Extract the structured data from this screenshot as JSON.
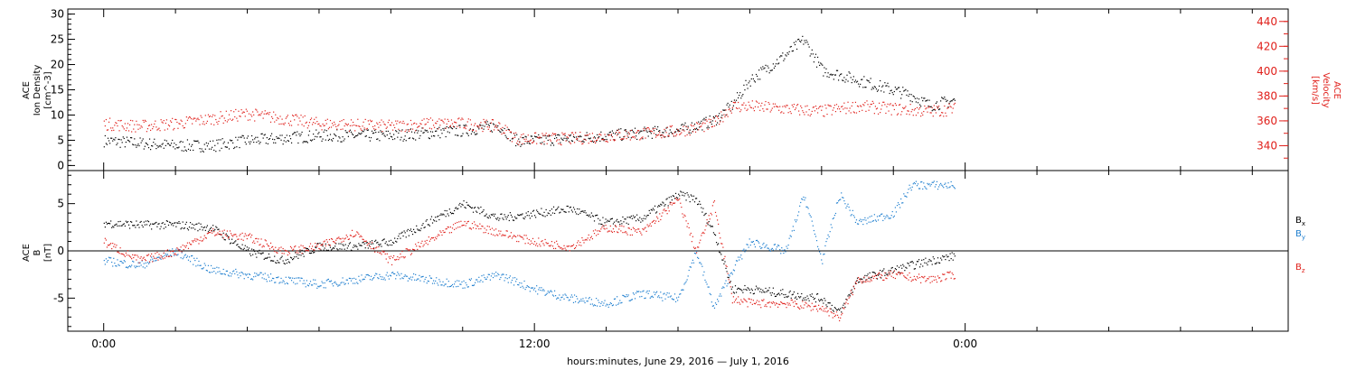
{
  "chart_data": [
    {
      "type": "scatter",
      "panel": "top",
      "ylabel_left": {
        "line1": "ACE",
        "line2": "Ion Density",
        "line3": "[cm^-3]"
      },
      "ylabel_right": {
        "line1": "ACE",
        "line2": "Velocity",
        "line3": "[km/s]"
      },
      "ylim_left": [
        -1,
        31
      ],
      "ylim_right": [
        320,
        450
      ],
      "yticks_left": [
        0,
        5,
        10,
        15,
        20,
        25,
        30
      ],
      "yticks_right": [
        340,
        360,
        380,
        400,
        420,
        440
      ],
      "xlim": [
        -1,
        33
      ],
      "series": [
        {
          "name": "",
          "axis": "left",
          "color": "#000000",
          "x": [
            0,
            1,
            2,
            3,
            4,
            5,
            6,
            7,
            8,
            9,
            10,
            11,
            11.5,
            12,
            13,
            14,
            15,
            16,
            17,
            17.5,
            18,
            19,
            19.5,
            20,
            21,
            22,
            22.5,
            23,
            23.7
          ],
          "y": [
            5,
            4.5,
            4,
            4,
            5,
            5.5,
            6,
            6,
            6,
            6.5,
            7,
            8,
            5,
            5,
            5.5,
            6,
            6.5,
            7,
            9,
            12,
            17,
            22,
            25,
            19,
            17,
            15,
            14,
            12,
            13
          ]
        },
        {
          "name": "",
          "axis": "right",
          "color": "#e0201b",
          "x": [
            0,
            1,
            2,
            3,
            4,
            5,
            6,
            7,
            8,
            9,
            10,
            11,
            11.5,
            12,
            13,
            14,
            15,
            16,
            17,
            17.5,
            18,
            19,
            20,
            21,
            22,
            23,
            23.7
          ],
          "y": [
            358,
            356,
            358,
            362,
            366,
            362,
            358,
            357,
            356,
            358,
            358,
            356,
            346,
            346,
            346,
            348,
            350,
            352,
            358,
            372,
            372,
            370,
            368,
            372,
            370,
            368,
            370
          ]
        }
      ]
    },
    {
      "type": "scatter",
      "panel": "bottom",
      "ylabel": {
        "line1": "ACE",
        "line2": "B",
        "line3": "[nT]"
      },
      "ylim": [
        -8.5,
        8.5
      ],
      "yticks": [
        -5,
        0,
        5
      ],
      "xlim": [
        -1,
        33
      ],
      "series": [
        {
          "name": "Bx",
          "color": "#000000",
          "x": [
            0,
            1,
            2,
            3,
            4,
            5,
            6,
            7,
            8,
            9,
            10,
            11,
            12,
            13,
            14,
            15,
            16,
            16.5,
            17,
            17.5,
            18,
            19,
            20,
            20.5,
            21,
            22,
            23,
            23.7
          ],
          "y": [
            3,
            2.8,
            2.8,
            2.5,
            0,
            -1,
            0.5,
            0.5,
            1,
            3,
            5,
            3.5,
            4,
            4.5,
            3,
            3.5,
            6,
            5.5,
            2,
            -4,
            -4,
            -4.5,
            -5,
            -6.5,
            -3,
            -2,
            -1,
            -0.5
          ]
        },
        {
          "name": "By",
          "color": "#1f7fcf",
          "x": [
            0,
            1,
            2,
            3,
            4,
            5,
            6,
            7,
            8,
            9,
            10,
            11,
            12,
            13,
            14,
            15,
            16,
            16.5,
            17,
            17.5,
            18,
            19,
            19.5,
            20,
            20.5,
            21,
            22,
            22.5,
            23,
            23.7
          ],
          "y": [
            -1,
            -1.5,
            0,
            -2,
            -2.5,
            -3,
            -3.5,
            -3,
            -2.5,
            -3,
            -3.5,
            -2.5,
            -4,
            -5,
            -5.5,
            -4.5,
            -5,
            0,
            -6,
            -2,
            1,
            0,
            6,
            -1,
            6,
            3,
            4,
            7,
            7,
            7
          ]
        },
        {
          "name": "Bz",
          "color": "#e0201b",
          "x": [
            0,
            1,
            2,
            3,
            4,
            5,
            6,
            7,
            8,
            9,
            10,
            11,
            12,
            13,
            14,
            15,
            16,
            16.5,
            17,
            17.5,
            18,
            19,
            20,
            20.5,
            21,
            22,
            23,
            23.7
          ],
          "y": [
            1,
            -1,
            0,
            2,
            1.5,
            0,
            0.5,
            2,
            -1,
            1,
            3,
            2,
            1,
            0.5,
            2.5,
            2,
            5.5,
            0,
            5,
            -5,
            -5.5,
            -5.5,
            -6,
            -7,
            -3,
            -2.5,
            -3,
            -2.5
          ]
        }
      ]
    }
  ],
  "xaxis": {
    "tick_labels": [
      {
        "x": 0,
        "label": "0:00"
      },
      {
        "x": 12,
        "label": "12:00"
      },
      {
        "x": 24,
        "label": "0:00"
      }
    ],
    "xlabel": "hours:minutes, June 29, 2016 — July 1, 2016"
  },
  "legend": {
    "bx": {
      "main": "B",
      "sub": "x"
    },
    "by": {
      "main": "B",
      "sub": "y"
    },
    "bz": {
      "main": "B",
      "sub": "z"
    }
  },
  "colors": {
    "black": "#000000",
    "red": "#e0201b",
    "blue": "#1f7fcf"
  }
}
